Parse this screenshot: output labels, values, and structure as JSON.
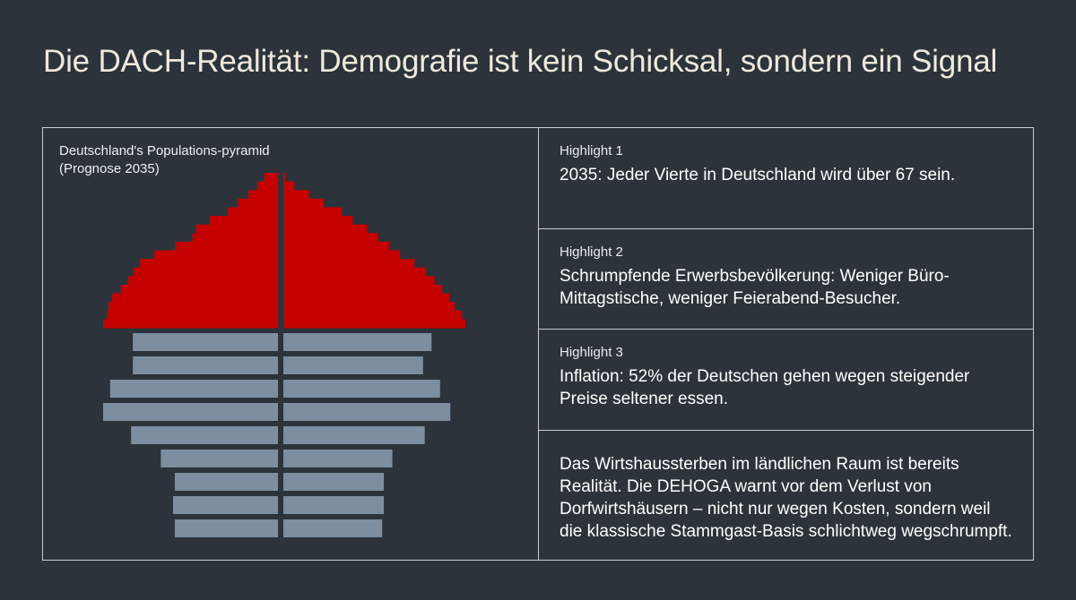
{
  "title": "Die DACH-Realität: Demografie ist kein Schicksal, sondern ein Signal",
  "chart": {
    "caption_line1": "Deutschland's Populations-pyramid",
    "caption_line2": "(Prognose 2035)"
  },
  "chart_data": {
    "type": "bar",
    "title": "Deutschland's Populations-pyramid (Prognose 2035)",
    "orientation": "horizontal-mirrored",
    "unit": "relative",
    "colors": {
      "older": "#c40000",
      "younger": "#7c8ea0"
    },
    "older": {
      "left": [
        0.08,
        0.12,
        0.17,
        0.23,
        0.29,
        0.39,
        0.47,
        0.49,
        0.59,
        0.71,
        0.79,
        0.83,
        0.86,
        0.9,
        0.95,
        0.97,
        0.98,
        1.0
      ],
      "right": [
        0.01,
        0.06,
        0.14,
        0.22,
        0.32,
        0.38,
        0.46,
        0.52,
        0.58,
        0.64,
        0.72,
        0.78,
        0.83,
        0.87,
        0.91,
        0.94,
        0.98,
        1.0
      ]
    },
    "younger": {
      "left": [
        0.83,
        0.83,
        0.96,
        1.0,
        0.84,
        0.67,
        0.59,
        0.6,
        0.59
      ],
      "right": [
        0.87,
        0.82,
        0.92,
        0.98,
        0.83,
        0.64,
        0.59,
        0.59,
        0.58
      ]
    }
  },
  "highlights": [
    {
      "label": "Highlight 1",
      "text": "2035: Jeder Vierte in Deutschland wird über 67 sein."
    },
    {
      "label": "Highlight 2",
      "text": "Schrumpfende Erwerbsbevölkerung: Weniger Büro-Mittagstische, weniger Feierabend-Besucher."
    },
    {
      "label": "Highlight 3",
      "text": "Inflation: 52% der Deutschen gehen wegen steigender Preise seltener essen."
    }
  ],
  "summary": "Das Wirtshaussterben im ländlichen Raum ist bereits Realität. Die DEHOGA warnt vor dem Verlust von Dorfwirtshäusern – nicht nur wegen Kosten, sondern weil die klassische Stammgast-Basis schlichtweg wegschrumpft."
}
